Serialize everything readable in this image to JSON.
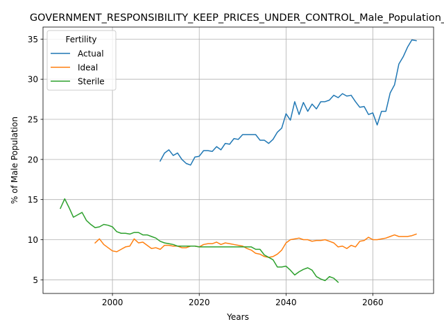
{
  "chart_data": {
    "type": "line",
    "title": "GOVERNMENT_RESPONSIBILITY_KEEP_PRICES_UNDER_CONTROL_Male_Population_",
    "xlabel": "Years",
    "ylabel": "% of Male Population",
    "xlim": [
      1984,
      2074
    ],
    "ylim": [
      3.3,
      36.5
    ],
    "xticks": [
      2000,
      2020,
      2040,
      2060
    ],
    "yticks": [
      5,
      10,
      15,
      20,
      25,
      30,
      35
    ],
    "grid": true,
    "legend": {
      "title": "Fertility",
      "placement": "top-left"
    },
    "series": [
      {
        "name": "Actual",
        "color": "#1f77b4",
        "x": [
          2011,
          2012,
          2013,
          2014,
          2015,
          2016,
          2017,
          2018,
          2019,
          2020,
          2021,
          2022,
          2023,
          2024,
          2025,
          2026,
          2027,
          2028,
          2029,
          2030,
          2031,
          2032,
          2033,
          2034,
          2035,
          2036,
          2037,
          2038,
          2039,
          2040,
          2041,
          2042,
          2043,
          2044,
          2045,
          2046,
          2047,
          2048,
          2049,
          2050,
          2051,
          2052,
          2053,
          2054,
          2055,
          2056,
          2057,
          2058,
          2059,
          2060,
          2061,
          2062,
          2063,
          2064,
          2065,
          2066,
          2067,
          2068,
          2069,
          2070
        ],
        "y": [
          19.8,
          20.8,
          21.2,
          20.5,
          20.8,
          20.0,
          19.5,
          19.3,
          20.3,
          20.4,
          21.1,
          21.1,
          21.0,
          21.6,
          21.2,
          22.0,
          21.9,
          22.6,
          22.5,
          23.1,
          23.1,
          23.1,
          23.1,
          22.4,
          22.4,
          22.0,
          22.5,
          23.4,
          23.9,
          25.7,
          24.9,
          27.2,
          25.6,
          27.1,
          26.0,
          26.9,
          26.3,
          27.2,
          27.2,
          27.4,
          28.0,
          27.7,
          28.2,
          27.9,
          28.0,
          27.2,
          26.5,
          26.6,
          25.6,
          25.8,
          24.3,
          26.0,
          26.0,
          28.3,
          29.3,
          31.9,
          32.8,
          34.0,
          34.9,
          34.8
        ]
      },
      {
        "name": "Ideal",
        "color": "#ff7f0e",
        "x": [
          1996,
          1997,
          1998,
          1999,
          2000,
          2001,
          2002,
          2003,
          2004,
          2005,
          2006,
          2007,
          2008,
          2009,
          2010,
          2011,
          2012,
          2013,
          2014,
          2015,
          2016,
          2017,
          2018,
          2019,
          2020,
          2021,
          2022,
          2023,
          2024,
          2025,
          2026,
          2027,
          2028,
          2029,
          2030,
          2031,
          2032,
          2033,
          2034,
          2035,
          2036,
          2037,
          2038,
          2039,
          2040,
          2041,
          2042,
          2043,
          2044,
          2045,
          2046,
          2047,
          2048,
          2049,
          2050,
          2051,
          2052,
          2053,
          2054,
          2055,
          2056,
          2057,
          2058,
          2059,
          2060,
          2061,
          2062,
          2063,
          2064,
          2065,
          2066,
          2067,
          2068,
          2069,
          2070
        ],
        "y": [
          9.6,
          10.1,
          9.4,
          9.0,
          8.6,
          8.5,
          8.8,
          9.1,
          9.2,
          10.1,
          9.6,
          9.7,
          9.3,
          8.9,
          9.0,
          8.8,
          9.3,
          9.3,
          9.2,
          9.2,
          9.0,
          9.0,
          9.2,
          9.2,
          9.1,
          9.4,
          9.5,
          9.5,
          9.7,
          9.4,
          9.6,
          9.5,
          9.4,
          9.3,
          9.2,
          8.9,
          8.7,
          8.3,
          8.2,
          7.9,
          7.8,
          7.9,
          8.2,
          8.7,
          9.6,
          10.0,
          10.1,
          10.2,
          10.0,
          10.0,
          9.8,
          9.9,
          9.9,
          10.0,
          9.8,
          9.6,
          9.1,
          9.2,
          8.9,
          9.3,
          9.1,
          9.8,
          9.9,
          10.3,
          10.0,
          10.0,
          10.1,
          10.2,
          10.4,
          10.6,
          10.4,
          10.4,
          10.4,
          10.5,
          10.7
        ]
      },
      {
        "name": "Sterile",
        "color": "#2ca02c",
        "x": [
          1988,
          1989,
          1990,
          1991,
          1992,
          1993,
          1994,
          1995,
          1996,
          1997,
          1998,
          1999,
          2000,
          2001,
          2002,
          2003,
          2004,
          2005,
          2006,
          2007,
          2008,
          2009,
          2010,
          2011,
          2012,
          2013,
          2014,
          2015,
          2016,
          2017,
          2018,
          2019,
          2020,
          2021,
          2022,
          2023,
          2024,
          2025,
          2026,
          2027,
          2028,
          2029,
          2030,
          2031,
          2032,
          2033,
          2034,
          2035,
          2036,
          2037,
          2038,
          2039,
          2040,
          2041,
          2042,
          2043,
          2044,
          2045,
          2046,
          2047,
          2048,
          2049,
          2050,
          2051,
          2052
        ],
        "y": [
          13.9,
          15.1,
          14.0,
          12.8,
          13.1,
          13.4,
          12.4,
          11.9,
          11.5,
          11.6,
          11.9,
          11.8,
          11.6,
          11.0,
          10.8,
          10.8,
          10.7,
          10.9,
          10.9,
          10.6,
          10.6,
          10.4,
          10.2,
          9.8,
          9.6,
          9.5,
          9.4,
          9.2,
          9.2,
          9.2,
          9.2,
          9.2,
          9.1,
          9.1,
          9.1,
          9.1,
          9.1,
          9.1,
          9.1,
          9.1,
          9.1,
          9.1,
          9.1,
          9.1,
          9.1,
          8.8,
          8.8,
          8.1,
          7.8,
          7.5,
          6.6,
          6.6,
          6.7,
          6.2,
          5.6,
          6.0,
          6.3,
          6.5,
          6.2,
          5.4,
          5.1,
          4.9,
          5.4,
          5.2,
          4.7
        ]
      }
    ]
  }
}
